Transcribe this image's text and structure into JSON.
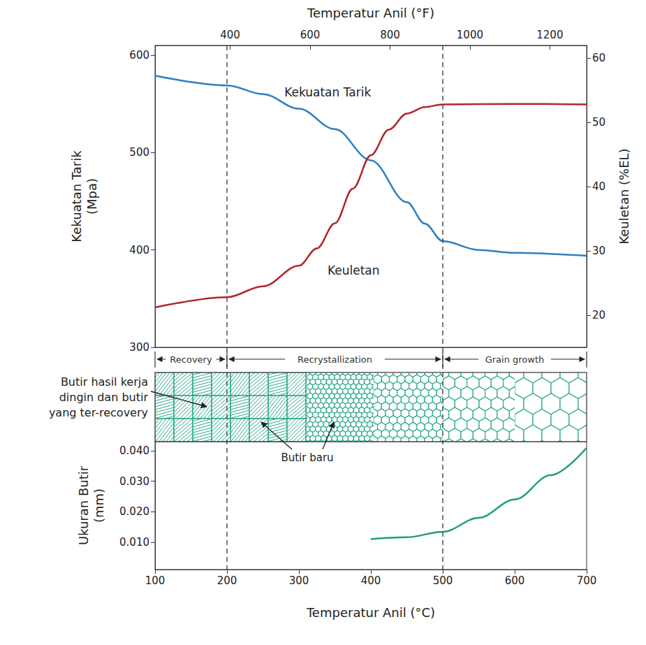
{
  "chart_data": [
    {
      "type": "line",
      "x2_label": "Temperatur Anil (°F)",
      "y_label": "Kekuatan Tarik (Mpa)",
      "y2_label": "Keuletan (%EL)",
      "xlim": [
        100,
        700
      ],
      "x2lim": [
        212,
        1292
      ],
      "x2ticks": [
        400,
        600,
        800,
        1000,
        1200
      ],
      "ylim": [
        300,
        610
      ],
      "yticks": [
        300,
        400,
        500,
        600
      ],
      "y2lim": [
        15,
        62
      ],
      "y2ticks": [
        20,
        30,
        40,
        50,
        60
      ],
      "grid": false,
      "series": [
        {
          "name": "Kekuatan Tarik",
          "color": "#2e7fc0",
          "x": [
            100,
            200,
            250,
            300,
            350,
            400,
            450,
            475,
            500,
            550,
            600,
            700
          ],
          "values": [
            579,
            569,
            560,
            545,
            524,
            492,
            449,
            427,
            409,
            400,
            397,
            394
          ]
        },
        {
          "name": "Keuletan",
          "color": "#b3262c",
          "axis": "y2",
          "x": [
            100,
            200,
            250,
            300,
            325,
            350,
            375,
            400,
            425,
            450,
            475,
            500,
            600,
            700
          ],
          "values": [
            21.2,
            22.8,
            24.5,
            27.7,
            30.4,
            34.3,
            39.7,
            44.9,
            48.9,
            51.4,
            52.4,
            52.8,
            52.9,
            52.8
          ]
        }
      ]
    },
    {
      "type": "line",
      "x_label": "Temperatur Anil (°C)",
      "y_label": "Ukuran Butir (mm)",
      "xlim": [
        100,
        700
      ],
      "xticks": [
        100,
        200,
        300,
        400,
        500,
        600,
        700
      ],
      "ylim": [
        0.001,
        0.043
      ],
      "yticks": [
        {
          "value": 0.01,
          "label": "0.010"
        },
        {
          "value": 0.02,
          "label": "0.020"
        },
        {
          "value": 0.03,
          "label": "0.030"
        },
        {
          "value": 0.04,
          "label": "0.040"
        }
      ],
      "grid": false,
      "series": [
        {
          "color": "#1e9e77",
          "x": [
            400,
            450,
            500,
            550,
            600,
            650,
            700
          ],
          "values": [
            0.011,
            0.0116,
            0.0134,
            0.018,
            0.024,
            0.032,
            0.041
          ]
        }
      ]
    }
  ],
  "microstructure": {
    "regions": [
      {
        "label": "Recovery",
        "from": 100,
        "to": 200
      },
      {
        "label": "Recrystallization",
        "from": 200,
        "to": 500
      },
      {
        "label": "Grain growth",
        "from": 500,
        "to": 700
      }
    ],
    "labels": {
      "cold_worked": "Butir hasil kerja dingin dan butir yang ter-recovery",
      "new_grains": "Butir baru"
    }
  }
}
